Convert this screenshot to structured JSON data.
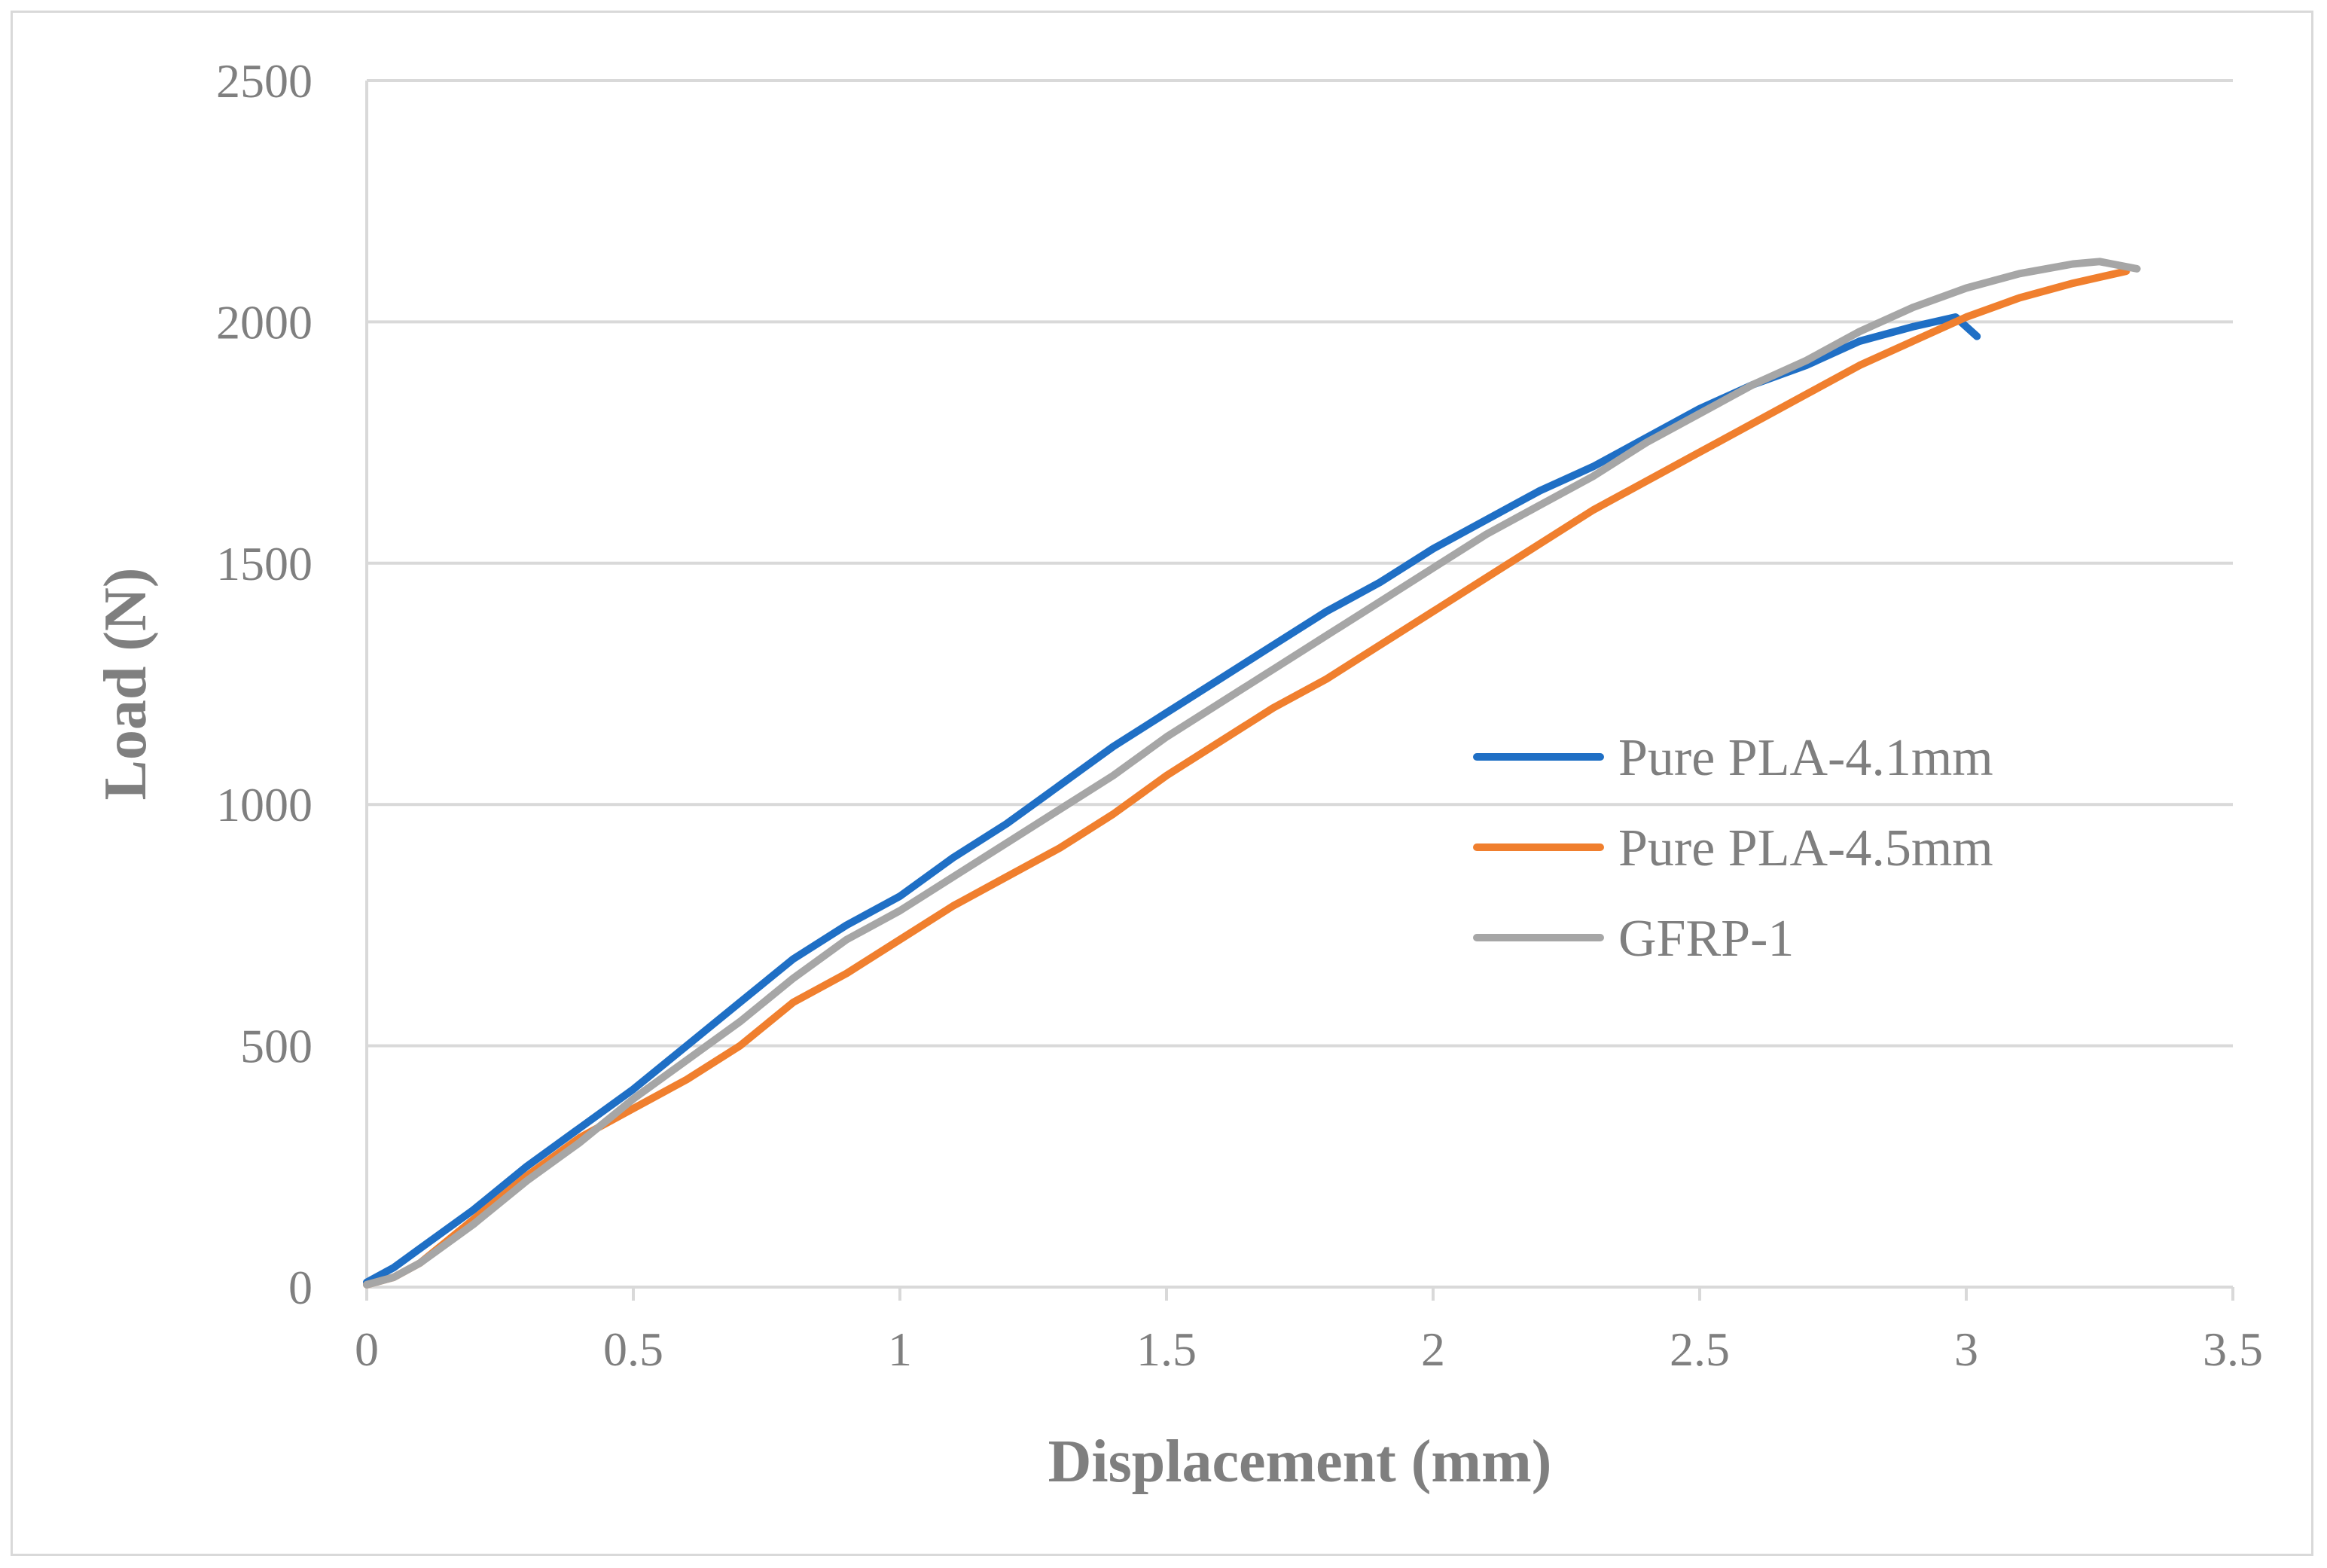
{
  "chart_data": {
    "type": "line",
    "xlabel": "Displacement (mm)",
    "ylabel": "Load (N)",
    "xlim": [
      0,
      3.5
    ],
    "ylim": [
      0,
      2500
    ],
    "x_ticks": [
      "0",
      "0.5",
      "1",
      "1.5",
      "2",
      "2.5",
      "3",
      "3.5"
    ],
    "y_ticks": [
      "0",
      "500",
      "1000",
      "1500",
      "2000",
      "2500"
    ],
    "grid": "horizontal",
    "legend_position": "right",
    "series": [
      {
        "name": "Pure PLA-4.1mm",
        "color": "#1f6fc5",
        "points": [
          [
            0,
            10
          ],
          [
            0.05,
            40
          ],
          [
            0.1,
            80
          ],
          [
            0.2,
            160
          ],
          [
            0.3,
            250
          ],
          [
            0.4,
            330
          ],
          [
            0.5,
            410
          ],
          [
            0.6,
            500
          ],
          [
            0.7,
            590
          ],
          [
            0.8,
            680
          ],
          [
            0.9,
            750
          ],
          [
            1.0,
            810
          ],
          [
            1.1,
            890
          ],
          [
            1.2,
            960
          ],
          [
            1.3,
            1040
          ],
          [
            1.4,
            1120
          ],
          [
            1.5,
            1190
          ],
          [
            1.6,
            1260
          ],
          [
            1.7,
            1330
          ],
          [
            1.8,
            1400
          ],
          [
            1.9,
            1460
          ],
          [
            2.0,
            1530
          ],
          [
            2.1,
            1590
          ],
          [
            2.2,
            1650
          ],
          [
            2.3,
            1700
          ],
          [
            2.4,
            1760
          ],
          [
            2.5,
            1820
          ],
          [
            2.6,
            1870
          ],
          [
            2.7,
            1910
          ],
          [
            2.8,
            1960
          ],
          [
            2.9,
            1990
          ],
          [
            2.98,
            2010
          ],
          [
            3.02,
            1970
          ]
        ]
      },
      {
        "name": "Pure PLA-4.5mm",
        "color": "#f07f2e",
        "points": [
          [
            0,
            5
          ],
          [
            0.05,
            20
          ],
          [
            0.1,
            50
          ],
          [
            0.2,
            140
          ],
          [
            0.3,
            230
          ],
          [
            0.4,
            310
          ],
          [
            0.5,
            370
          ],
          [
            0.6,
            430
          ],
          [
            0.7,
            500
          ],
          [
            0.8,
            590
          ],
          [
            0.9,
            650
          ],
          [
            1.0,
            720
          ],
          [
            1.1,
            790
          ],
          [
            1.2,
            850
          ],
          [
            1.3,
            910
          ],
          [
            1.4,
            980
          ],
          [
            1.5,
            1060
          ],
          [
            1.6,
            1130
          ],
          [
            1.7,
            1200
          ],
          [
            1.8,
            1260
          ],
          [
            1.9,
            1330
          ],
          [
            2.0,
            1400
          ],
          [
            2.1,
            1470
          ],
          [
            2.2,
            1540
          ],
          [
            2.3,
            1610
          ],
          [
            2.4,
            1670
          ],
          [
            2.5,
            1730
          ],
          [
            2.6,
            1790
          ],
          [
            2.7,
            1850
          ],
          [
            2.8,
            1910
          ],
          [
            2.9,
            1960
          ],
          [
            3.0,
            2010
          ],
          [
            3.1,
            2050
          ],
          [
            3.2,
            2080
          ],
          [
            3.3,
            2105
          ]
        ]
      },
      {
        "name": "GFRP-1",
        "color": "#a6a6a6",
        "points": [
          [
            0,
            5
          ],
          [
            0.05,
            20
          ],
          [
            0.1,
            50
          ],
          [
            0.2,
            130
          ],
          [
            0.3,
            220
          ],
          [
            0.4,
            300
          ],
          [
            0.5,
            390
          ],
          [
            0.6,
            470
          ],
          [
            0.7,
            550
          ],
          [
            0.8,
            640
          ],
          [
            0.9,
            720
          ],
          [
            1.0,
            780
          ],
          [
            1.1,
            850
          ],
          [
            1.2,
            920
          ],
          [
            1.3,
            990
          ],
          [
            1.4,
            1060
          ],
          [
            1.5,
            1140
          ],
          [
            1.6,
            1210
          ],
          [
            1.7,
            1280
          ],
          [
            1.8,
            1350
          ],
          [
            1.9,
            1420
          ],
          [
            2.0,
            1490
          ],
          [
            2.1,
            1560
          ],
          [
            2.2,
            1620
          ],
          [
            2.3,
            1680
          ],
          [
            2.4,
            1750
          ],
          [
            2.5,
            1810
          ],
          [
            2.6,
            1870
          ],
          [
            2.7,
            1920
          ],
          [
            2.8,
            1980
          ],
          [
            2.9,
            2030
          ],
          [
            3.0,
            2070
          ],
          [
            3.1,
            2100
          ],
          [
            3.2,
            2120
          ],
          [
            3.25,
            2125
          ],
          [
            3.32,
            2110
          ]
        ]
      }
    ]
  }
}
